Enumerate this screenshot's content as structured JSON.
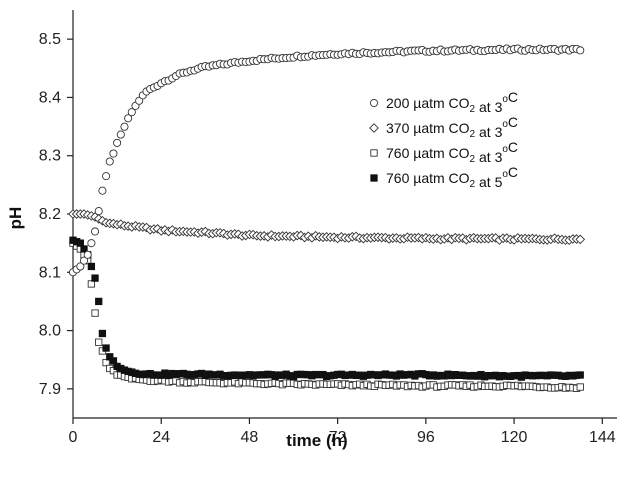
{
  "chart_data": {
    "type": "scatter",
    "xlabel": "time (h)",
    "ylabel": "pH",
    "xlim": [
      0,
      148
    ],
    "ylim": [
      7.85,
      8.55
    ],
    "xticks": [
      0,
      24,
      48,
      72,
      96,
      120,
      144
    ],
    "yticks": [
      7.9,
      8.0,
      8.1,
      8.2,
      8.3,
      8.4,
      8.5
    ],
    "tick_labels": {
      "x": [
        "0",
        "24",
        "48",
        "72",
        "96",
        "120",
        "144"
      ],
      "y": [
        "7.9",
        "8.0",
        "8.1",
        "8.2",
        "8.3",
        "8.4",
        "8.5"
      ]
    },
    "x_end": 138,
    "point_interval_h": 1,
    "legend": "inside-right",
    "series": [
      {
        "name": "200 µatm CO2 at 3°C",
        "legend": {
          "prefix": "200 µatm CO",
          "sub": "2",
          "mid": " at 3",
          "sup": "o",
          "suffix": "C"
        },
        "marker": "open-circle",
        "anchors": [
          [
            0,
            8.1
          ],
          [
            2,
            8.11
          ],
          [
            4,
            8.13
          ],
          [
            6,
            8.17
          ],
          [
            8,
            8.24
          ],
          [
            10,
            8.29
          ],
          [
            12,
            8.32
          ],
          [
            14,
            8.35
          ],
          [
            16,
            8.375
          ],
          [
            18,
            8.395
          ],
          [
            20,
            8.41
          ],
          [
            24,
            8.425
          ],
          [
            28,
            8.437
          ],
          [
            32,
            8.446
          ],
          [
            36,
            8.452
          ],
          [
            40,
            8.456
          ],
          [
            48,
            8.463
          ],
          [
            60,
            8.47
          ],
          [
            72,
            8.475
          ],
          [
            96,
            8.48
          ],
          [
            120,
            8.482
          ],
          [
            138,
            8.482
          ]
        ]
      },
      {
        "name": "370 µatm CO2 at 3°C",
        "legend": {
          "prefix": "370 µatm CO",
          "sub": "2",
          "mid": " at 3",
          "sup": "o",
          "suffix": "C"
        },
        "marker": "open-diamond",
        "anchors": [
          [
            0,
            8.2
          ],
          [
            3,
            8.2
          ],
          [
            6,
            8.195
          ],
          [
            9,
            8.185
          ],
          [
            12,
            8.182
          ],
          [
            18,
            8.177
          ],
          [
            24,
            8.172
          ],
          [
            36,
            8.168
          ],
          [
            48,
            8.163
          ],
          [
            72,
            8.16
          ],
          [
            96,
            8.158
          ],
          [
            120,
            8.157
          ],
          [
            138,
            8.157
          ]
        ]
      },
      {
        "name": "760 µatm CO2 at 3°C",
        "legend": {
          "prefix": "760 µatm CO",
          "sub": "2",
          "mid": " at 3",
          "sup": "o",
          "suffix": "C"
        },
        "marker": "open-square",
        "anchors": [
          [
            0,
            8.15
          ],
          [
            2,
            8.14
          ],
          [
            4,
            8.12
          ],
          [
            5,
            8.08
          ],
          [
            6,
            8.03
          ],
          [
            7,
            7.98
          ],
          [
            8,
            7.965
          ],
          [
            9,
            7.945
          ],
          [
            10,
            7.935
          ],
          [
            12,
            7.925
          ],
          [
            15,
            7.918
          ],
          [
            20,
            7.915
          ],
          [
            30,
            7.912
          ],
          [
            60,
            7.908
          ],
          [
            96,
            7.905
          ],
          [
            120,
            7.905
          ],
          [
            138,
            7.902
          ]
        ]
      },
      {
        "name": "760 µatm CO2 at 5°C",
        "legend": {
          "prefix": "760 µatm CO",
          "sub": "2",
          "mid": " at 5",
          "sup": "o",
          "suffix": "C"
        },
        "marker": "filled-square",
        "anchors": [
          [
            0,
            8.155
          ],
          [
            2,
            8.15
          ],
          [
            3,
            8.14
          ],
          [
            4,
            8.13
          ],
          [
            5,
            8.11
          ],
          [
            6,
            8.09
          ],
          [
            7,
            8.05
          ],
          [
            8,
            7.995
          ],
          [
            9,
            7.97
          ],
          [
            10,
            7.955
          ],
          [
            12,
            7.94
          ],
          [
            15,
            7.93
          ],
          [
            20,
            7.925
          ],
          [
            30,
            7.925
          ],
          [
            60,
            7.923
          ],
          [
            96,
            7.924
          ],
          [
            120,
            7.922
          ],
          [
            138,
            7.922
          ]
        ]
      }
    ]
  }
}
